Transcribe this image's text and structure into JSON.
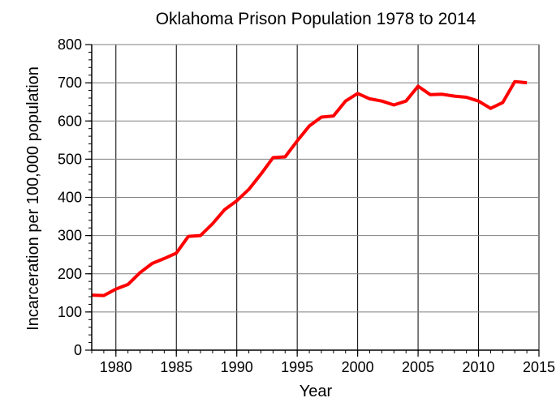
{
  "chart_data": {
    "type": "line",
    "title": "Oklahoma Prison Population 1978 to 2014",
    "xlabel": "Year",
    "ylabel": "Incarceration per 100,000 population",
    "xlim": [
      1978,
      2015
    ],
    "ylim": [
      0,
      800
    ],
    "xticks": [
      1980,
      1985,
      1990,
      1995,
      2000,
      2005,
      2010,
      2015
    ],
    "yticks": [
      0,
      100,
      200,
      300,
      400,
      500,
      600,
      700,
      800
    ],
    "grid": true,
    "series": [
      {
        "color": "#ff0000",
        "x": [
          1978,
          1979,
          1980,
          1981,
          1982,
          1983,
          1984,
          1985,
          1986,
          1987,
          1988,
          1989,
          1990,
          1991,
          1992,
          1993,
          1994,
          1995,
          1996,
          1997,
          1998,
          1999,
          2000,
          2001,
          2002,
          2003,
          2004,
          2005,
          2006,
          2007,
          2008,
          2009,
          2010,
          2011,
          2012,
          2013,
          2014
        ],
        "y": [
          144,
          143,
          160,
          172,
          203,
          227,
          240,
          254,
          298,
          300,
          331,
          368,
          391,
          421,
          461,
          504,
          506,
          548,
          587,
          610,
          613,
          652,
          672,
          658,
          652,
          642,
          652,
          691,
          669,
          670,
          665,
          662,
          652,
          633,
          648,
          703,
          700
        ]
      }
    ]
  }
}
